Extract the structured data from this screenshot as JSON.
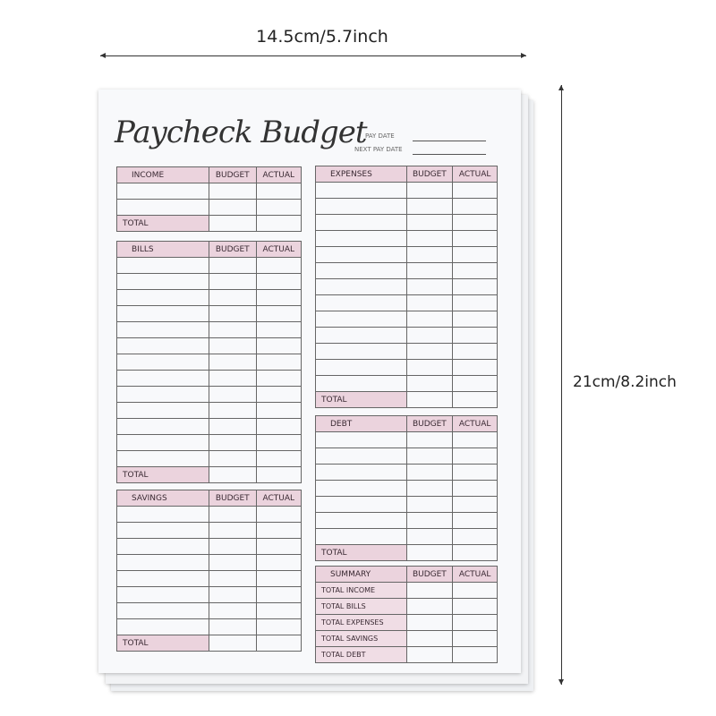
{
  "dimensions": {
    "width_label": "14.5cm/5.7inch",
    "height_label": "21cm/8.2inch"
  },
  "planner": {
    "title": "Paycheck Budget",
    "pay_date_label": "PAY DATE",
    "next_pay_date_label": "NEXT PAY DATE",
    "colors": {
      "header_pink": "#ebd3dd",
      "lines": "#666666"
    },
    "tables": {
      "income": {
        "title": "INCOME",
        "budget": "BUDGET",
        "actual": "ACTUAL",
        "blank_rows": 2,
        "total": "TOTAL"
      },
      "bills": {
        "title": "BILLS",
        "budget": "BUDGET",
        "actual": "ACTUAL",
        "blank_rows": 13,
        "total": "TOTAL"
      },
      "savings": {
        "title": "SAVINGS",
        "budget": "BUDGET",
        "actual": "ACTUAL",
        "blank_rows": 8,
        "total": "TOTAL"
      },
      "expenses": {
        "title": "EXPENSES",
        "budget": "BUDGET",
        "actual": "ACTUAL",
        "blank_rows": 13,
        "total": "TOTAL"
      },
      "debt": {
        "title": "DEBT",
        "budget": "BUDGET",
        "actual": "ACTUAL",
        "blank_rows": 7,
        "total": "TOTAL"
      },
      "summary": {
        "title": "SUMMARY",
        "budget": "BUDGET",
        "actual": "ACTUAL",
        "rows": [
          "TOTAL INCOME",
          "TOTAL BILLS",
          "TOTAL EXPENSES",
          "TOTAL SAVINGS",
          "TOTAL DEBT"
        ]
      }
    }
  }
}
